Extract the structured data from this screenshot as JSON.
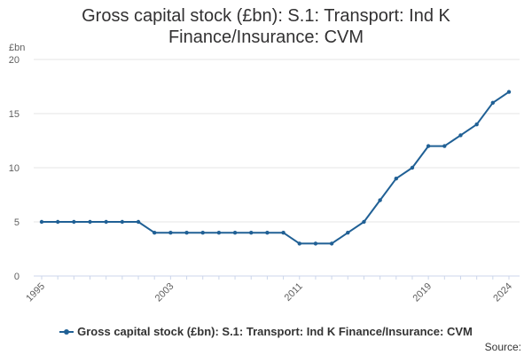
{
  "title_lines": [
    "Gross capital stock (£bn): S.1: Transport: Ind K",
    "Finance/Insurance: CVM"
  ],
  "source_label": "Source:",
  "colors": {
    "series": "#206095",
    "grid": "#e6e6e6",
    "axis": "#ccd6eb"
  },
  "chart_data": {
    "type": "line",
    "title": "Gross capital stock (£bn): S.1: Transport: Ind K Finance/Insurance: CVM",
    "ylabel": "£bn",
    "xlabel": "",
    "ylim": [
      0,
      20
    ],
    "yticks": [
      0,
      5,
      10,
      15,
      20
    ],
    "xticks": [
      1995,
      2003,
      2011,
      2019,
      2024
    ],
    "grid": true,
    "legend_position": "bottom",
    "series": [
      {
        "name": "Gross capital stock (£bn): S.1: Transport: Ind K Finance/Insurance: CVM",
        "x": [
          1995,
          1996,
          1997,
          1998,
          1999,
          2000,
          2001,
          2002,
          2003,
          2004,
          2005,
          2006,
          2007,
          2008,
          2009,
          2010,
          2011,
          2012,
          2013,
          2014,
          2015,
          2016,
          2017,
          2018,
          2019,
          2020,
          2021,
          2022,
          2023,
          2024
        ],
        "values": [
          5,
          5,
          5,
          5,
          5,
          5,
          5,
          4,
          4,
          4,
          4,
          4,
          4,
          4,
          4,
          4,
          3,
          3,
          3,
          4,
          5,
          7,
          9,
          10,
          12,
          12,
          13,
          14,
          16,
          17
        ]
      }
    ]
  }
}
